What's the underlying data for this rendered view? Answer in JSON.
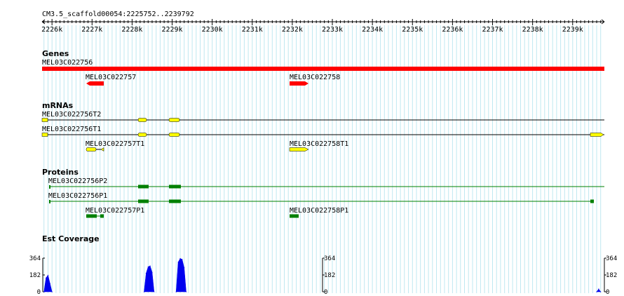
{
  "region_label": "CM3.5_scaffold00054:2225752..2239792",
  "ruler": {
    "ticks": [
      "2226k",
      "2227k",
      "2228k",
      "2229k",
      "2230k",
      "2231k",
      "2232k",
      "2233k",
      "2234k",
      "2235k",
      "2236k",
      "2237k",
      "2238k",
      "2239k"
    ]
  },
  "tracks": {
    "genes": {
      "title": "Genes",
      "features": [
        {
          "name": "MEL03C022756"
        },
        {
          "name": "MEL03C022757"
        },
        {
          "name": "MEL03C022758"
        }
      ]
    },
    "mrnas": {
      "title": "mRNAs",
      "features": [
        {
          "name": "MEL03C022756T2"
        },
        {
          "name": "MEL03C022756T1"
        },
        {
          "name": "MEL03C022757T1"
        },
        {
          "name": "MEL03C022758T1"
        }
      ]
    },
    "proteins": {
      "title": "Proteins",
      "features": [
        {
          "name": "MEL03C022756P2"
        },
        {
          "name": "MEL03C022756P1"
        },
        {
          "name": "MEL03C022757P1"
        },
        {
          "name": "MEL03C022758P1"
        }
      ]
    },
    "est": {
      "title": "Est Coverage",
      "axis_labels": [
        "364",
        "182",
        "0"
      ]
    }
  },
  "colors": {
    "gene": "#ff0000",
    "mrna": "#ffff00",
    "protein": "#008000",
    "coverage": "#0000ee",
    "grid": "#bfe8f0"
  },
  "chart_data": {
    "type": "area",
    "title": "Est Coverage",
    "ylim": [
      0,
      364
    ],
    "yticks": [
      0,
      182,
      364
    ],
    "x": [
      2225800,
      2225850,
      2225900,
      2225950,
      2226000,
      2228300,
      2228350,
      2228400,
      2228450,
      2228500,
      2228550,
      2229100,
      2229150,
      2229200,
      2229250,
      2229300,
      2229350,
      2239600,
      2239650,
      2239700
    ],
    "series": [
      {
        "values": [
          0,
          150,
          180,
          90,
          0,
          0,
          200,
          270,
          280,
          210,
          0,
          0,
          320,
          360,
          350,
          260,
          0,
          0,
          30,
          0
        ]
      }
    ]
  }
}
